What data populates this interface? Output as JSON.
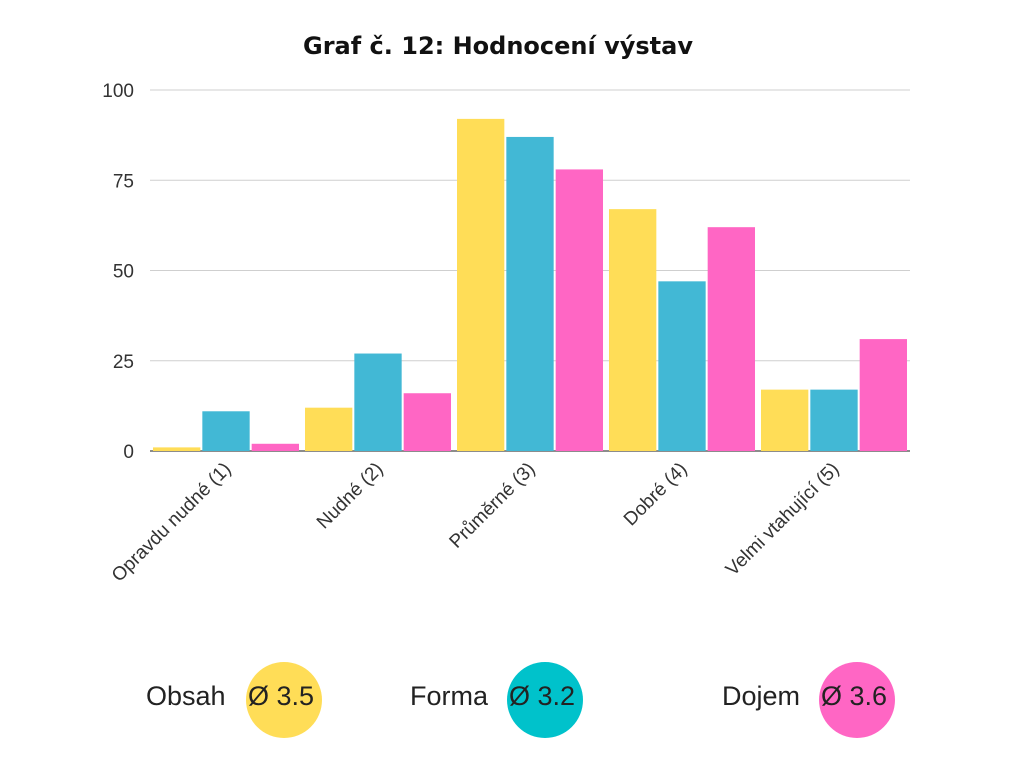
{
  "chart_data": {
    "type": "bar",
    "title": "Graf č. 12: Hodnocení výstav",
    "xlabel": "",
    "ylabel": "",
    "ylim": [
      0,
      100
    ],
    "yticks": [
      0,
      25,
      50,
      75,
      100
    ],
    "grid": true,
    "legend_position": "bottom",
    "categories": [
      "Opravdu nudné (1)",
      "Nudné (2)",
      "Průměrné (3)",
      "Dobré (4)",
      "Velmi vtahující (5)"
    ],
    "series": [
      {
        "name": "Obsah",
        "color": "#FFDD57",
        "average": "Ø 3.5",
        "values": [
          1,
          12,
          92,
          67,
          17
        ]
      },
      {
        "name": "Forma",
        "color": "#42B8D5",
        "average": "Ø 3.2",
        "values": [
          11,
          27,
          87,
          47,
          17
        ]
      },
      {
        "name": "Dojem",
        "color": "#FF66C4",
        "average": "Ø 3.6",
        "values": [
          2,
          16,
          78,
          62,
          31
        ]
      }
    ]
  },
  "legend_circle_colors": [
    "#FFDD57",
    "#00C2CB",
    "#FF66C4"
  ]
}
